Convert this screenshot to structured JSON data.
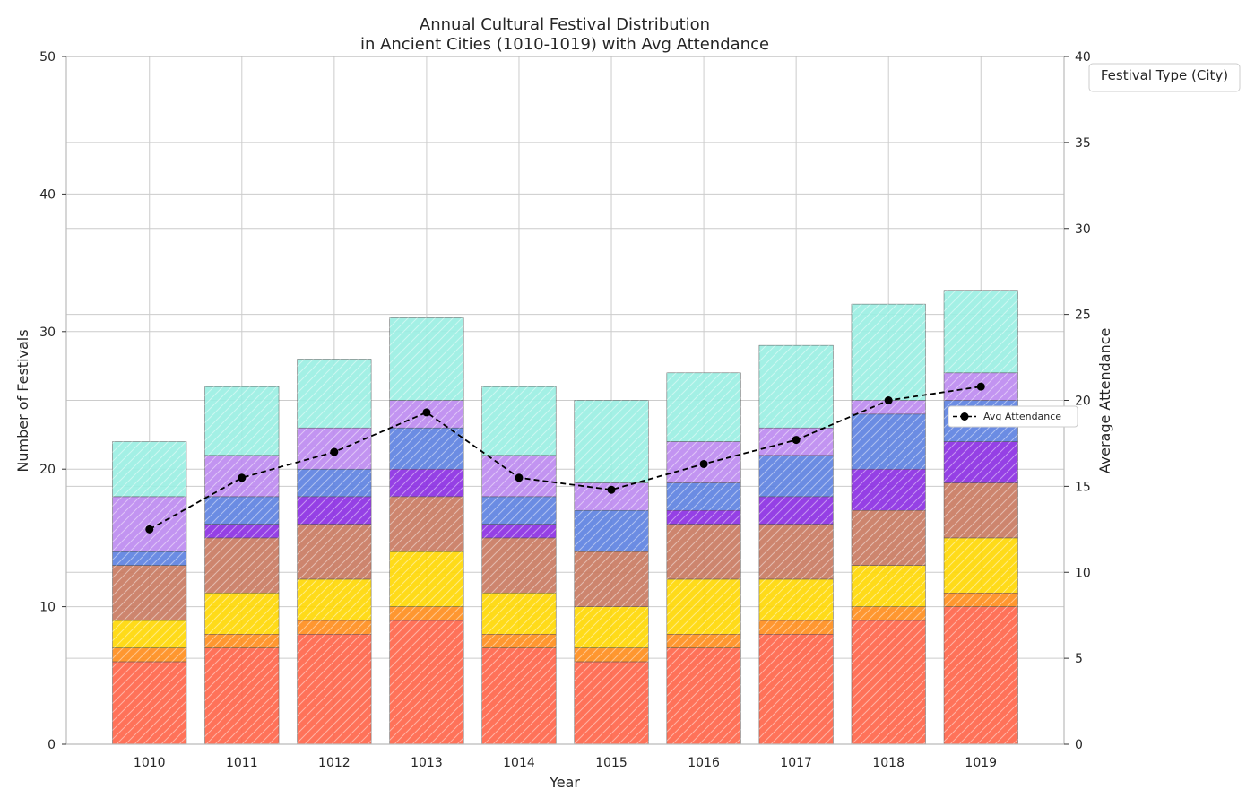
{
  "chart_data": {
    "type": "bar",
    "stacked": true,
    "title_line1": "Annual Cultural Festival Distribution",
    "title_line2": "in Ancient Cities (1010-1019) with Avg Attendance",
    "xlabel": "Year",
    "ylabel": "Number of Festivals",
    "y2label": "Average Attendance",
    "ylim": [
      0,
      50
    ],
    "y2lim": [
      0,
      40
    ],
    "yticks": [
      "0",
      "10",
      "20",
      "30",
      "40",
      "50"
    ],
    "y2ticks": [
      "0",
      "5",
      "10",
      "15",
      "20",
      "25",
      "30",
      "35",
      "40"
    ],
    "grid": true,
    "categories": [
      "1010",
      "1011",
      "1012",
      "1013",
      "1014",
      "1015",
      "1016",
      "1017",
      "1018",
      "1019"
    ],
    "series": [
      {
        "color": "#ff6347",
        "values": [
          6,
          7,
          8,
          9,
          7,
          6,
          7,
          8,
          9,
          10
        ]
      },
      {
        "color": "#ff8c1a",
        "values": [
          1,
          1,
          1,
          1,
          1,
          1,
          1,
          1,
          1,
          1
        ]
      },
      {
        "color": "#ffd700",
        "values": [
          2,
          3,
          3,
          4,
          3,
          3,
          4,
          3,
          3,
          4
        ]
      },
      {
        "color": "#c8785e",
        "values": [
          4,
          4,
          4,
          4,
          4,
          4,
          4,
          4,
          4,
          4
        ]
      },
      {
        "color": "#a0826d",
        "values": [
          0,
          0,
          0,
          0,
          0,
          0,
          0,
          0,
          0,
          0
        ]
      },
      {
        "color": "#8a2be2",
        "values": [
          0,
          1,
          2,
          2,
          1,
          0,
          1,
          2,
          3,
          3
        ]
      },
      {
        "color": "#5b7fe0",
        "values": [
          1,
          2,
          2,
          3,
          2,
          3,
          2,
          3,
          4,
          3
        ]
      },
      {
        "color": "#bb88f0",
        "values": [
          4,
          3,
          3,
          2,
          3,
          2,
          3,
          2,
          1,
          2
        ]
      },
      {
        "color": "#99eee2",
        "values": [
          4,
          5,
          5,
          6,
          5,
          6,
          5,
          6,
          7,
          6
        ]
      }
    ],
    "line": {
      "name": "Avg Attendance",
      "values": [
        12.5,
        15.5,
        17.0,
        19.3,
        15.5,
        14.8,
        16.3,
        17.7,
        20.0,
        20.8
      ],
      "color": "#000000"
    },
    "legend": {
      "title": "Festival Type (City)",
      "title_placement": "outside-top-right",
      "line_legend_placement": "center-right"
    }
  }
}
